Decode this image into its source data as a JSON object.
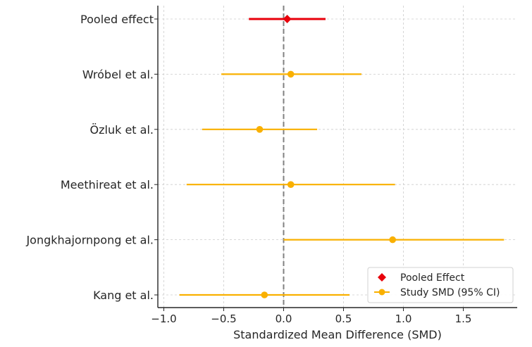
{
  "chart_data": {
    "type": "forest",
    "title": "",
    "xlabel": "Standardized Mean Difference (SMD)",
    "ylabel": "",
    "xlim": [
      -1.05,
      1.95
    ],
    "xticks": [
      -1.0,
      -0.5,
      0.0,
      0.5,
      1.0,
      1.5
    ],
    "xtick_labels": [
      "−1.0",
      "−0.5",
      "0.0",
      "0.5",
      "1.0",
      "1.5"
    ],
    "grid": true,
    "reference_line": 0,
    "legend_position": "bottom-right",
    "legend": [
      {
        "label": "Pooled Effect",
        "marker": "diamond",
        "color": "#e8000b"
      },
      {
        "label": "Study SMD (95% CI)",
        "marker": "circle",
        "color": "#f9b000"
      }
    ],
    "rows": [
      {
        "label": "Pooled effect",
        "smd": 0.03,
        "ci_low": -0.29,
        "ci_high": 0.35,
        "kind": "pooled"
      },
      {
        "label": "Wróbel et al.",
        "smd": 0.06,
        "ci_low": -0.52,
        "ci_high": 0.65,
        "kind": "study"
      },
      {
        "label": "Özluk et al.",
        "smd": -0.2,
        "ci_low": -0.68,
        "ci_high": 0.28,
        "kind": "study"
      },
      {
        "label": "Meethireat et al.",
        "smd": 0.06,
        "ci_low": -0.81,
        "ci_high": 0.93,
        "kind": "study"
      },
      {
        "label": "Jongkhajornpong et al.",
        "smd": 0.91,
        "ci_low": 0.0,
        "ci_high": 1.84,
        "kind": "study"
      },
      {
        "label": "Kang et al.",
        "smd": -0.16,
        "ci_low": -0.87,
        "ci_high": 0.55,
        "kind": "study"
      }
    ],
    "colors": {
      "pooled": "#e8000b",
      "study": "#f9b000",
      "grid": "#cccccc",
      "reference": "#808080"
    }
  }
}
